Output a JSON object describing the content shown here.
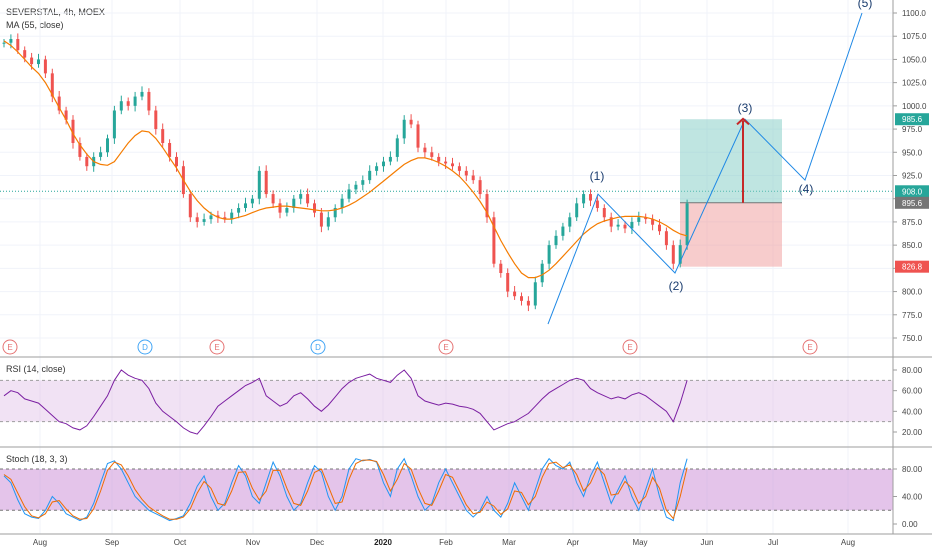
{
  "header": {
    "symbol_line": "SEVERSTAL, 4h, MOEX",
    "ma_label": "MA (55, close)"
  },
  "panels": {
    "rsi_label": "RSI (14, close)",
    "stoch_label": "Stoch (18, 3, 3)"
  },
  "colors": {
    "candle_up": "#26a69a",
    "candle_down": "#ef5350",
    "ma_line": "#f57c00",
    "rsi_line": "#7b1fa2",
    "rsi_band": "#e1bee7",
    "stoch_k": "#2196f3",
    "stoch_d": "#ef6c00",
    "stoch_band": "#ce93d8",
    "wave_line": "#1e88e5",
    "arrow": "#c62828",
    "target_zone": "#80cbc4",
    "stop_zone": "#ef9a9a",
    "price_badge_red": "#ef5350",
    "price_badge_grey": "#757575",
    "price_badge_green": "#26a69a",
    "event_e": "#e57373",
    "event_d": "#42a5f5"
  },
  "chart_data": [
    {
      "type": "candlestick",
      "title": "SEVERSTAL, 4h, MOEX",
      "indicator": "MA (55, close)",
      "x_ticks": [
        "Aug",
        "Sep",
        "Oct",
        "Nov",
        "Dec",
        "2020",
        "Feb",
        "Mar",
        "Apr",
        "May",
        "Jun",
        "Jul",
        "Aug"
      ],
      "y_ticks": [
        750,
        775,
        800,
        825,
        850,
        875,
        900,
        925,
        950,
        975,
        1000,
        1025,
        1050,
        1075,
        1100
      ],
      "ylim": [
        738,
        1108
      ],
      "price_path": {
        "x": [
          0,
          7,
          13,
          20,
          28,
          35,
          42,
          48,
          56,
          63,
          70,
          77,
          84,
          90,
          97,
          104,
          111,
          118,
          125,
          132,
          139,
          146,
          153,
          160,
          167,
          174,
          181,
          188,
          194,
          201,
          208,
          215,
          222,
          229,
          236,
          243,
          250,
          257,
          264,
          271,
          278,
          285,
          292,
          299,
          306,
          313,
          320,
          327,
          334,
          341,
          348,
          355,
          362,
          369,
          376,
          383,
          390,
          397,
          404,
          411,
          418,
          425,
          432,
          439,
          446,
          453,
          460,
          467,
          474,
          481,
          488,
          495,
          502,
          509,
          516,
          522,
          529,
          536,
          543,
          550,
          557,
          564,
          571,
          578,
          585,
          592,
          599,
          606,
          613,
          620,
          627,
          634,
          641,
          648,
          655,
          662,
          669,
          676,
          683,
          690
        ],
        "close": [
          1068,
          1072,
          1060,
          1052,
          1045,
          1050,
          1035,
          1010,
          995,
          985,
          960,
          945,
          935,
          945,
          950,
          965,
          995,
          1005,
          1000,
          1010,
          1015,
          995,
          975,
          960,
          945,
          935,
          905,
          880,
          875,
          878,
          882,
          880,
          878,
          885,
          890,
          895,
          900,
          930,
          905,
          895,
          885,
          890,
          900,
          905,
          895,
          885,
          870,
          880,
          890,
          900,
          910,
          915,
          920,
          930,
          935,
          940,
          945,
          965,
          985,
          980,
          955,
          950,
          945,
          940,
          938,
          935,
          930,
          925,
          920,
          905,
          880,
          830,
          820,
          800,
          795,
          790,
          785,
          810,
          830,
          850,
          860,
          870,
          880,
          895,
          905,
          898,
          890,
          880,
          870,
          872,
          868,
          875,
          880,
          878,
          872,
          865,
          850,
          830,
          850,
          895
        ],
        "ma55": [
          1070,
          1065,
          1058,
          1050,
          1042,
          1035,
          1025,
          1012,
          998,
          985,
          970,
          958,
          948,
          940,
          937,
          936,
          940,
          950,
          960,
          968,
          973,
          972,
          965,
          955,
          944,
          933,
          920,
          908,
          898,
          890,
          884,
          880,
          878,
          878,
          880,
          882,
          885,
          888,
          890,
          891,
          892,
          892,
          891,
          890,
          889,
          888,
          887,
          887,
          888,
          890,
          893,
          897,
          902,
          907,
          913,
          919,
          925,
          931,
          937,
          941,
          944,
          944,
          942,
          939,
          935,
          930,
          924,
          916,
          907,
          897,
          885,
          870,
          855,
          842,
          830,
          820,
          815,
          815,
          818,
          823,
          830,
          838,
          846,
          854,
          862,
          868,
          873,
          876,
          878,
          880,
          881,
          881,
          881,
          880,
          878,
          875,
          871,
          866,
          862,
          860
        ]
      }
    },
    {
      "type": "line",
      "title": "RSI (14, close)",
      "y_ticks": [
        20,
        40,
        60,
        80
      ],
      "ylim": [
        10,
        90
      ],
      "band": [
        30,
        70
      ],
      "values": [
        55,
        60,
        58,
        52,
        50,
        48,
        42,
        36,
        30,
        28,
        24,
        22,
        26,
        35,
        45,
        55,
        70,
        80,
        75,
        72,
        70,
        62,
        48,
        40,
        35,
        30,
        24,
        20,
        18,
        26,
        35,
        45,
        50,
        55,
        60,
        65,
        68,
        72,
        55,
        50,
        45,
        48,
        55,
        58,
        52,
        45,
        40,
        46,
        54,
        62,
        68,
        72,
        74,
        76,
        72,
        70,
        68,
        75,
        80,
        72,
        55,
        50,
        48,
        46,
        48,
        47,
        45,
        44,
        42,
        38,
        30,
        22,
        25,
        28,
        30,
        34,
        38,
        45,
        52,
        58,
        62,
        66,
        70,
        72,
        70,
        62,
        58,
        55,
        52,
        54,
        52,
        56,
        58,
        55,
        50,
        45,
        40,
        30,
        48,
        70
      ]
    },
    {
      "type": "line",
      "title": "Stoch (18, 3, 3)",
      "y_ticks": [
        0,
        40,
        80
      ],
      "ylim": [
        -5,
        100
      ],
      "band": [
        20,
        80
      ],
      "series": [
        {
          "values": [
            70,
            60,
            35,
            15,
            10,
            8,
            20,
            40,
            30,
            15,
            10,
            5,
            10,
            30,
            60,
            88,
            92,
            80,
            60,
            40,
            30,
            20,
            15,
            10,
            5,
            8,
            12,
            30,
            55,
            70,
            40,
            20,
            30,
            60,
            85,
            70,
            40,
            30,
            60,
            90,
            70,
            40,
            20,
            30,
            60,
            85,
            75,
            40,
            20,
            40,
            80,
            95,
            92,
            94,
            90,
            60,
            40,
            80,
            95,
            70,
            40,
            20,
            30,
            60,
            80,
            60,
            40,
            20,
            10,
            20,
            40,
            20,
            10,
            30,
            60,
            40,
            20,
            50,
            80,
            95,
            85,
            80,
            90,
            60,
            40,
            70,
            90,
            60,
            30,
            50,
            70,
            40,
            20,
            50,
            80,
            40,
            10,
            5,
            60,
            95
          ]
        },
        {
          "values": [
            72,
            65,
            45,
            25,
            12,
            9,
            15,
            32,
            34,
            22,
            12,
            7,
            8,
            22,
            48,
            78,
            90,
            86,
            70,
            50,
            36,
            25,
            18,
            12,
            7,
            7,
            10,
            22,
            45,
            62,
            52,
            30,
            27,
            48,
            75,
            76,
            52,
            35,
            48,
            78,
            78,
            52,
            30,
            27,
            48,
            75,
            80,
            55,
            30,
            32,
            65,
            88,
            93,
            93,
            91,
            72,
            48,
            65,
            88,
            80,
            52,
            30,
            27,
            48,
            72,
            68,
            48,
            28,
            15,
            17,
            32,
            26,
            14,
            22,
            48,
            46,
            28,
            40,
            68,
            88,
            90,
            82,
            86,
            72,
            48,
            60,
            82,
            72,
            42,
            44,
            62,
            52,
            30,
            40,
            68,
            52,
            20,
            8,
            40,
            82
          ]
        }
      ]
    }
  ],
  "annotations": {
    "wave_labels": [
      "(1)",
      "(2)",
      "(3)",
      "(4)",
      "(5)"
    ],
    "event_markers": [
      "E",
      "D",
      "E",
      "D",
      "E",
      "E",
      "E"
    ],
    "price_badges": [
      "1100.0",
      "1075.0",
      "1050.0",
      "1025.0",
      "1000.0",
      "985.6",
      "975.0",
      "950.0",
      "925.0",
      "908.0",
      "895.6",
      "875.0",
      "850.0",
      "826.8",
      "800.0",
      "775.0",
      "750.0"
    ]
  }
}
